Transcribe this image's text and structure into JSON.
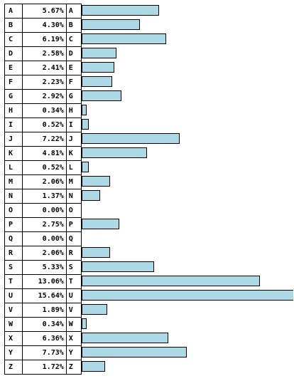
{
  "chart_data": {
    "type": "bar",
    "orientation": "horizontal",
    "bar_color": "#add8e6",
    "border_color": "#000000",
    "max_value": 15.64,
    "categories": [
      "A",
      "B",
      "C",
      "D",
      "E",
      "F",
      "G",
      "H",
      "I",
      "J",
      "K",
      "L",
      "M",
      "N",
      "O",
      "P",
      "Q",
      "R",
      "S",
      "T",
      "U",
      "V",
      "W",
      "X",
      "Y",
      "Z"
    ],
    "values": [
      5.67,
      4.3,
      6.19,
      2.58,
      2.41,
      2.23,
      2.92,
      0.34,
      0.52,
      7.22,
      4.81,
      0.52,
      2.06,
      1.37,
      0.0,
      2.75,
      0.0,
      2.06,
      5.33,
      13.06,
      15.64,
      1.89,
      0.34,
      6.36,
      7.73,
      1.72
    ],
    "labels": [
      "5.67%",
      "4.30%",
      "6.19%",
      "2.58%",
      "2.41%",
      "2.23%",
      "2.92%",
      "0.34%",
      "0.52%",
      "7.22%",
      "4.81%",
      "0.52%",
      "2.06%",
      "1.37%",
      "0.00%",
      "2.75%",
      "0.00%",
      "2.06%",
      "5.33%",
      "13.06%",
      "15.64%",
      "1.89%",
      "0.34%",
      "6.36%",
      "7.73%",
      "1.72%"
    ]
  }
}
